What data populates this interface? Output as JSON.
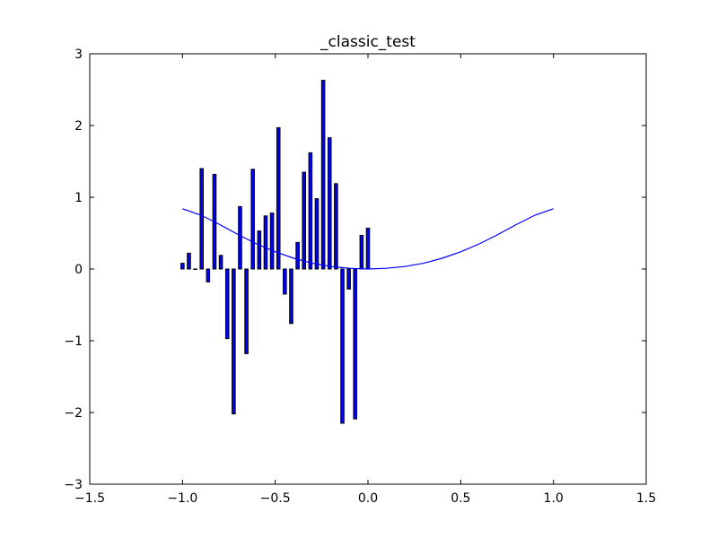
{
  "chart_data": {
    "type": "bar",
    "title": "_classic_test",
    "xlabel": "",
    "ylabel": "",
    "xlim": [
      -1.5,
      1.5
    ],
    "ylim": [
      -3,
      3
    ],
    "x_ticks": [
      "−1.5",
      "−1.0",
      "−0.5",
      "0.0",
      "0.5",
      "1.0",
      "1.5"
    ],
    "x_tick_values": [
      -1.5,
      -1.0,
      -0.5,
      0.0,
      0.5,
      1.0,
      1.5
    ],
    "y_ticks": [
      "−3",
      "−2",
      "−1",
      "0",
      "1",
      "2",
      "3"
    ],
    "y_tick_values": [
      -3,
      -2,
      -1,
      0,
      1,
      2,
      3
    ],
    "grid": false,
    "bar_color": "#0000ff",
    "line_color": "#0000ff",
    "bars": {
      "x": [
        -1.0,
        -0.9655,
        -0.931,
        -0.8966,
        -0.8621,
        -0.8276,
        -0.7931,
        -0.7586,
        -0.7241,
        -0.6897,
        -0.6552,
        -0.6207,
        -0.5862,
        -0.5517,
        -0.5172,
        -0.4828,
        -0.4483,
        -0.4138,
        -0.3793,
        -0.3448,
        -0.3103,
        -0.2759,
        -0.2414,
        -0.2069,
        -0.1724,
        -0.1379,
        -0.1034,
        -0.069,
        -0.0345,
        0.0
      ],
      "values": [
        0.08,
        0.22,
        0.0,
        1.4,
        -0.18,
        1.32,
        0.19,
        -0.97,
        -2.02,
        0.87,
        -1.18,
        1.39,
        0.53,
        0.74,
        0.78,
        1.97,
        -0.35,
        -0.76,
        0.37,
        1.35,
        1.62,
        0.98,
        2.63,
        1.83,
        1.19,
        -2.15,
        -0.28,
        -2.09,
        0.47,
        0.57
      ]
    },
    "line": {
      "name": "",
      "function": "x^2 (approx)",
      "x": [
        -1.0,
        -0.9,
        -0.8,
        -0.7,
        -0.6,
        -0.5,
        -0.4,
        -0.3,
        -0.2,
        -0.1,
        0.0,
        0.1,
        0.2,
        0.3,
        0.4,
        0.5,
        0.6,
        0.7,
        0.8,
        0.9,
        1.0
      ],
      "y": [
        0.84,
        0.75,
        0.62,
        0.48,
        0.35,
        0.24,
        0.15,
        0.08,
        0.035,
        0.01,
        0.0,
        0.01,
        0.035,
        0.08,
        0.15,
        0.24,
        0.35,
        0.48,
        0.62,
        0.75,
        0.84
      ]
    }
  }
}
